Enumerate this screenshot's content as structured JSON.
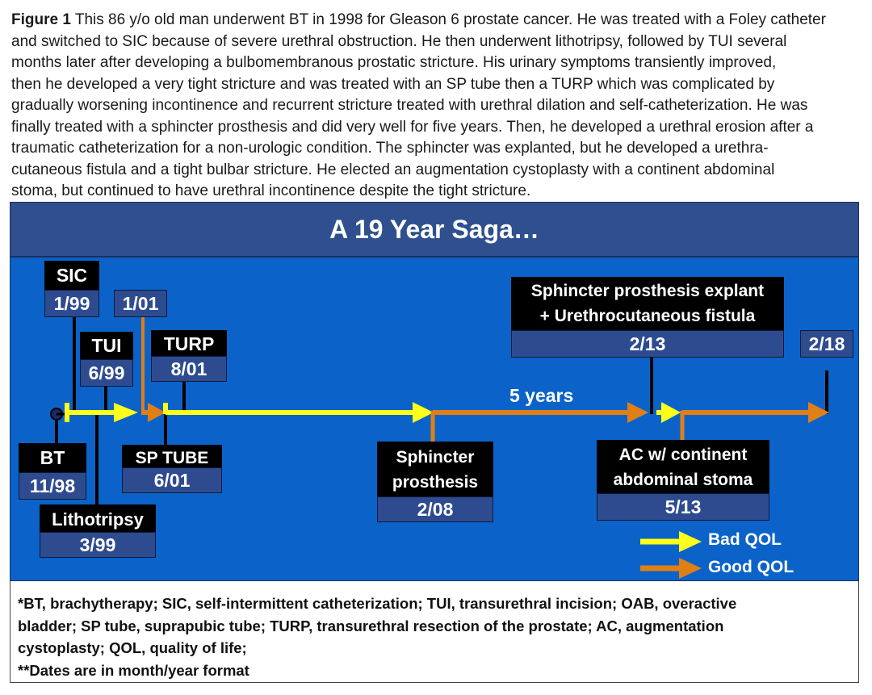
{
  "caption": {
    "label": "Figure 1",
    "lines": [
      " This 86 y/o old man underwent BT in 1998 for Gleason 6 prostate cancer. He was treated with a Foley catheter",
      "and switched to SIC because of severe urethral obstruction. He then underwent lithotripsy, followed by TUI several",
      "months later after developing a bulbomembranous prostatic stricture. His urinary symptoms transiently improved,",
      "then he developed a very tight stricture and was treated with an SP tube then a TURP which was complicated by",
      "gradually worsening incontinence and recurrent stricture treated with urethral dilation and self-catheterization. He was",
      "finally treated with a sphincter prosthesis and did very well for five years. Then, he developed a urethral erosion after a",
      "traumatic catheterization for a non-urologic condition. The sphincter was explanted, but he developed a urethra-",
      "cutaneous fistula and a tight bulbar stricture. He elected an augmentation cystoplasty with a continent abdominal",
      "stoma, but continued to have urethral incontinence despite the tight stricture."
    ]
  },
  "diagram": {
    "title": "A 19 Year Saga…",
    "events": {
      "sic": {
        "label": "SIC",
        "date": "1/99"
      },
      "sp_tube_start": {
        "date": "1/01"
      },
      "tui": {
        "label": "TUI",
        "date": "6/99"
      },
      "turp": {
        "label": "TURP",
        "date": "8/01"
      },
      "bt": {
        "label": "BT",
        "date": "11/98"
      },
      "lithotripsy": {
        "label": "Lithotripsy",
        "date": "3/99"
      },
      "sp_tube": {
        "label": "SP TUBE",
        "date": "6/01"
      },
      "sphincter": {
        "label_line1": "Sphincter",
        "label_line2": "prosthesis",
        "date": "2/08"
      },
      "explant": {
        "label_line1": "Sphincter prosthesis explant",
        "label_line2": "+ Urethrocutaneous fistula",
        "date": "2/13"
      },
      "ac": {
        "label_line1": "AC w/ continent",
        "label_line2": "abdominal stoma",
        "date": "5/13"
      },
      "end": {
        "date": "2/18"
      }
    },
    "five_years_label": "5 years",
    "legend": {
      "bad": "Bad QOL",
      "good": "Good QOL"
    },
    "colors": {
      "bad_qol": "#ffff1a",
      "good_qol": "#e07f16",
      "background": "#0b63c9",
      "banner": "#2f4f8e",
      "date_box": "#2e4b8f"
    }
  },
  "footnote": {
    "lines": [
      "*BT, brachytherapy; SIC, self-intermittent catheterization; TUI, transurethral incision; OAB, overactive",
      "bladder; SP tube, suprapubic tube; TURP, transurethral resection of the prostate; AC, augmentation",
      "cystoplasty; QOL, quality of life;",
      "**Dates are in month/year format"
    ]
  }
}
